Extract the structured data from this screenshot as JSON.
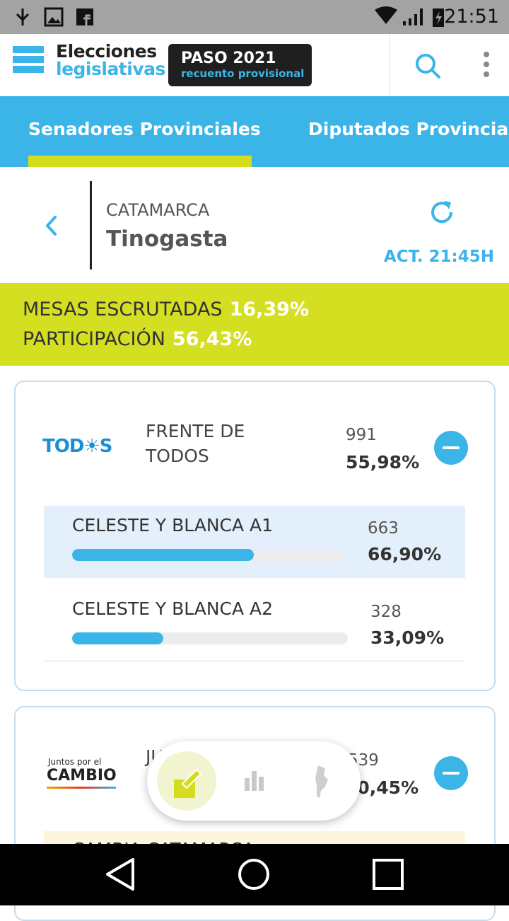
{
  "status_bar": {
    "time": "21:51"
  },
  "header": {
    "title_line1": "Elecciones",
    "title_line2": "legislativas",
    "badge_title": "PASO 2021",
    "badge_subtitle": "recuento provisional"
  },
  "tabs": [
    "Senadores Provinciales",
    "Diputados Provinciales"
  ],
  "location": {
    "province": "CATAMARCA",
    "district": "Tinogasta",
    "updated": "ACT. 21:45H"
  },
  "summary": {
    "mesas_label": "MESAS ESCRUTADAS",
    "mesas_value": "16,39%",
    "participacion_label": "PARTICIPACIÓN",
    "participacion_value": "56,43%"
  },
  "parties": [
    {
      "logo": "TOD☀S",
      "name_line1": "FRENTE DE",
      "name_line2": "TODOS",
      "votes": 991,
      "percent": "55,98%",
      "lists": [
        {
          "name": "CELESTE Y BLANCA A1",
          "votes": 663,
          "percent": 66.9,
          "percent_label": "66,90%"
        },
        {
          "name": "CELESTE Y BLANCA A2",
          "votes": 328,
          "percent": 33.09,
          "percent_label": "33,09%"
        }
      ]
    },
    {
      "logo_line1": "Juntos por el",
      "logo_line2": "CAMBIO",
      "name_line1": "JU",
      "votes": 539,
      "percent": "30,45%",
      "lists": [
        {
          "name": "CAMBIA CATAMARCA"
        }
      ]
    }
  ]
}
